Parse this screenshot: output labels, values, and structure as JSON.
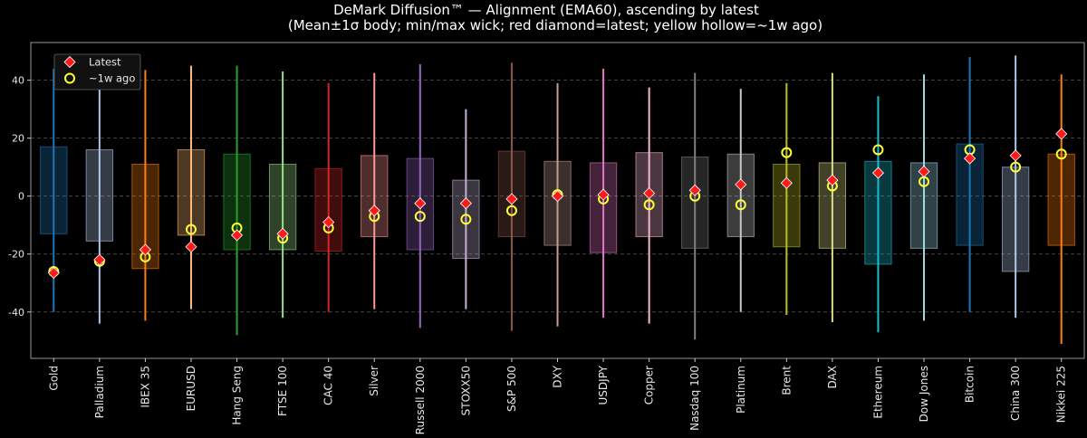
{
  "chart_data": {
    "type": "box",
    "title": "DeMark Diffusion™ — Alignment (EMA60), ascending by latest",
    "subtitle": "(Mean±1σ body; min/max wick; red diamond=latest; yellow hollow=~1w ago)",
    "xlabel": "",
    "ylabel": "",
    "ylim": [
      -56,
      53
    ],
    "yticks": [
      -40,
      -20,
      0,
      20,
      40
    ],
    "grid": "horizontal-dashed",
    "legend": {
      "placement": "upper-left",
      "entries": [
        {
          "label": "Latest",
          "marker": "red-diamond"
        },
        {
          "label": "~1w ago",
          "marker": "yellow-hollow-circle"
        }
      ]
    },
    "colors": {
      "background": "#000000",
      "text": "#e6e6e6",
      "grid": "#555555",
      "latest_marker": "#ff1a1a",
      "latest_edge": "#ffffff",
      "week_marker": "#ffff33"
    },
    "categories": [
      "Gold",
      "Palladium",
      "IBEX 35",
      "EURUSD",
      "Hang Seng",
      "FTSE 100",
      "CAC 40",
      "Silver",
      "Russell 2000",
      "STOXX50",
      "S&P 500",
      "DXY",
      "USDJPY",
      "Copper",
      "Nasdaq 100",
      "Platinum",
      "Brent",
      "DAX",
      "Ethereum",
      "Dow Jones",
      "Bitcoin",
      "China 300",
      "Nikkei 225"
    ],
    "series": [
      {
        "name": "Gold",
        "color": "#1f77b4",
        "mean_minus_sd": -13,
        "mean_plus_sd": 17,
        "min": -40,
        "max": 44,
        "latest": -26.5,
        "week_ago": -26
      },
      {
        "name": "Palladium",
        "color": "#aec7e8",
        "mean_minus_sd": -15.5,
        "mean_plus_sd": 16,
        "min": -44,
        "max": 44,
        "latest": -22,
        "week_ago": -22.5
      },
      {
        "name": "IBEX 35",
        "color": "#ff7f0e",
        "mean_minus_sd": -25,
        "mean_plus_sd": 11,
        "min": -43,
        "max": 43.5,
        "latest": -18.5,
        "week_ago": -21
      },
      {
        "name": "EURUSD",
        "color": "#ffbb78",
        "mean_minus_sd": -13.5,
        "mean_plus_sd": 16,
        "min": -39,
        "max": 45,
        "latest": -17.5,
        "week_ago": -11.5
      },
      {
        "name": "Hang Seng",
        "color": "#2ca02c",
        "mean_minus_sd": -18.5,
        "mean_plus_sd": 14.5,
        "min": -48,
        "max": 45,
        "latest": -13.5,
        "week_ago": -11
      },
      {
        "name": "FTSE 100",
        "color": "#98df8a",
        "mean_minus_sd": -18.5,
        "mean_plus_sd": 11,
        "min": -42,
        "max": 43,
        "latest": -13,
        "week_ago": -14.5
      },
      {
        "name": "CAC 40",
        "color": "#d62728",
        "mean_minus_sd": -19,
        "mean_plus_sd": 9.5,
        "min": -40,
        "max": 39,
        "latest": -9,
        "week_ago": -11
      },
      {
        "name": "Silver",
        "color": "#ff9896",
        "mean_minus_sd": -14,
        "mean_plus_sd": 14,
        "min": -39,
        "max": 42.5,
        "latest": -5,
        "week_ago": -7
      },
      {
        "name": "Russell 2000",
        "color": "#9467bd",
        "mean_minus_sd": -18.5,
        "mean_plus_sd": 13,
        "min": -45.5,
        "max": 45.5,
        "latest": -2.5,
        "week_ago": -7
      },
      {
        "name": "STOXX50",
        "color": "#c5b0d5",
        "mean_minus_sd": -21.5,
        "mean_plus_sd": 5.5,
        "min": -39,
        "max": 30,
        "latest": -2.5,
        "week_ago": -8
      },
      {
        "name": "S&P 500",
        "color": "#8c564b",
        "mean_minus_sd": -14,
        "mean_plus_sd": 15.5,
        "min": -46.5,
        "max": 46,
        "latest": -1,
        "week_ago": -5
      },
      {
        "name": "DXY",
        "color": "#c49c94",
        "mean_minus_sd": -17,
        "mean_plus_sd": 12,
        "min": -45,
        "max": 39,
        "latest": 0,
        "week_ago": 0.5
      },
      {
        "name": "USDJPY",
        "color": "#e377c2",
        "mean_minus_sd": -19.5,
        "mean_plus_sd": 11.5,
        "min": -42,
        "max": 44,
        "latest": 0.5,
        "week_ago": -1
      },
      {
        "name": "Copper",
        "color": "#f7b6d2",
        "mean_minus_sd": -14,
        "mean_plus_sd": 15,
        "min": -44,
        "max": 37.5,
        "latest": 1,
        "week_ago": -3
      },
      {
        "name": "Nasdaq 100",
        "color": "#7f7f7f",
        "mean_minus_sd": -18,
        "mean_plus_sd": 13.5,
        "min": -49.5,
        "max": 42.5,
        "latest": 2,
        "week_ago": 0
      },
      {
        "name": "Platinum",
        "color": "#c7c7c7",
        "mean_minus_sd": -14,
        "mean_plus_sd": 14.5,
        "min": -40,
        "max": 37,
        "latest": 4,
        "week_ago": -3
      },
      {
        "name": "Brent",
        "color": "#bcbd22",
        "mean_minus_sd": -17.5,
        "mean_plus_sd": 11,
        "min": -41,
        "max": 39,
        "latest": 4.5,
        "week_ago": 15
      },
      {
        "name": "DAX",
        "color": "#dbdb8d",
        "mean_minus_sd": -18,
        "mean_plus_sd": 11.5,
        "min": -43.5,
        "max": 42.5,
        "latest": 5.5,
        "week_ago": 3.5
      },
      {
        "name": "Ethereum",
        "color": "#17becf",
        "mean_minus_sd": -23.5,
        "mean_plus_sd": 12,
        "min": -47,
        "max": 34.5,
        "latest": 8,
        "week_ago": 16
      },
      {
        "name": "Dow Jones",
        "color": "#9edae5",
        "mean_minus_sd": -18,
        "mean_plus_sd": 11.5,
        "min": -43,
        "max": 42,
        "latest": 8.5,
        "week_ago": 5
      },
      {
        "name": "Bitcoin",
        "color": "#1f77b4",
        "mean_minus_sd": -17,
        "mean_plus_sd": 18,
        "min": -40,
        "max": 48,
        "latest": 13,
        "week_ago": 16
      },
      {
        "name": "China 300",
        "color": "#aec7e8",
        "mean_minus_sd": -26,
        "mean_plus_sd": 10,
        "min": -42,
        "max": 48.5,
        "latest": 14,
        "week_ago": 10
      },
      {
        "name": "Nikkei 225",
        "color": "#ff7f0e",
        "mean_minus_sd": -17,
        "mean_plus_sd": 14.5,
        "min": -51,
        "max": 42,
        "latest": 21.5,
        "week_ago": 14.5
      }
    ]
  }
}
